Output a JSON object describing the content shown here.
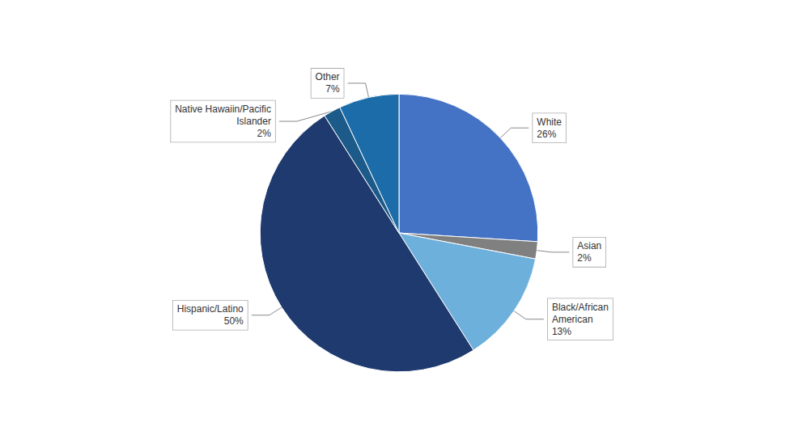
{
  "chart_data": {
    "type": "pie",
    "categories": [
      "White",
      "Asian",
      "Black/African\nAmerican",
      "Hispanic/Latino",
      "Native Hawaiin/Pacific\nIslander",
      "Other"
    ],
    "values": [
      26,
      2,
      13,
      50,
      2,
      7
    ],
    "value_labels": [
      "26%",
      "2%",
      "13%",
      "50%",
      "2%",
      "7%"
    ],
    "colors": [
      "#4472C4",
      "#808080",
      "#6EB0DC",
      "#1F3A6E",
      "#1C5A8A",
      "#1B6CA8"
    ],
    "data_labels": true
  }
}
